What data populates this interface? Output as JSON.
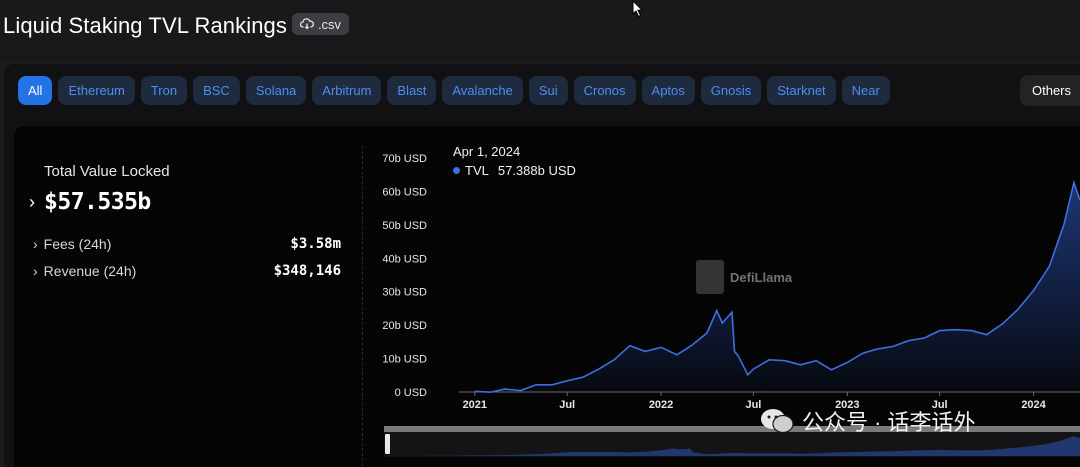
{
  "header": {
    "title": "Liquid Staking TVL Rankings",
    "csv_label": ".csv"
  },
  "tabs": [
    {
      "label": "All",
      "active": true
    },
    {
      "label": "Ethereum"
    },
    {
      "label": "Tron"
    },
    {
      "label": "BSC"
    },
    {
      "label": "Solana"
    },
    {
      "label": "Arbitrum"
    },
    {
      "label": "Blast"
    },
    {
      "label": "Avalanche"
    },
    {
      "label": "Sui"
    },
    {
      "label": "Cronos"
    },
    {
      "label": "Aptos"
    },
    {
      "label": "Gnosis"
    },
    {
      "label": "Starknet"
    },
    {
      "label": "Near"
    }
  ],
  "others_label": "Others",
  "stats": {
    "tvl_label": "Total Value Locked",
    "tvl_value": "$57.535b",
    "fees_label": "Fees (24h)",
    "fees_value": "$3.58m",
    "revenue_label": "Revenue (24h)",
    "revenue_value": "$348,146"
  },
  "tooltip": {
    "date": "Apr 1, 2024",
    "series": "TVL",
    "value": "57.388b USD"
  },
  "watermark": "DefiLlama",
  "footer_watermark": "公众号 · 话李话外",
  "colors": {
    "accent": "#2373e6",
    "line": "#3d6fe0",
    "tab_text": "#4c8ef0"
  },
  "chart_data": {
    "type": "area",
    "series": [
      {
        "name": "TVL"
      }
    ],
    "y_ticks": [
      "0 USD",
      "10b USD",
      "20b USD",
      "30b USD",
      "40b USD",
      "50b USD",
      "60b USD",
      "70b USD"
    ],
    "x_ticks": [
      "2021",
      "Jul",
      "2022",
      "Jul",
      "2023",
      "Jul",
      "2024"
    ],
    "ylim": [
      0,
      70
    ],
    "y_unit": "b USD",
    "points": [
      [
        "2021-01-01",
        0.2
      ],
      [
        "2021-02-01",
        0.3
      ],
      [
        "2021-03-01",
        0.5
      ],
      [
        "2021-04-01",
        0.8
      ],
      [
        "2021-05-01",
        1.8
      ],
      [
        "2021-06-01",
        2.5
      ],
      [
        "2021-07-01",
        3.0
      ],
      [
        "2021-08-01",
        4.8
      ],
      [
        "2021-09-01",
        6.5
      ],
      [
        "2021-10-01",
        10.0
      ],
      [
        "2021-11-01",
        13.5
      ],
      [
        "2021-12-01",
        12.5
      ],
      [
        "2022-01-01",
        13.0
      ],
      [
        "2022-02-01",
        11.5
      ],
      [
        "2022-03-01",
        13.5
      ],
      [
        "2022-04-01",
        18.0
      ],
      [
        "2022-04-20",
        24.0
      ],
      [
        "2022-05-01",
        21.0
      ],
      [
        "2022-05-20",
        23.5
      ],
      [
        "2022-05-25",
        12.5
      ],
      [
        "2022-06-01",
        10.5
      ],
      [
        "2022-06-20",
        5.5
      ],
      [
        "2022-07-01",
        6.5
      ],
      [
        "2022-08-01",
        10.0
      ],
      [
        "2022-09-01",
        9.0
      ],
      [
        "2022-10-01",
        8.5
      ],
      [
        "2022-11-01",
        9.0
      ],
      [
        "2022-12-01",
        7.0
      ],
      [
        "2023-01-01",
        8.5
      ],
      [
        "2023-02-01",
        12.0
      ],
      [
        "2023-03-01",
        12.5
      ],
      [
        "2023-04-01",
        14.0
      ],
      [
        "2023-05-01",
        15.0
      ],
      [
        "2023-06-01",
        16.5
      ],
      [
        "2023-07-01",
        18.0
      ],
      [
        "2023-08-01",
        19.0
      ],
      [
        "2023-09-01",
        18.0
      ],
      [
        "2023-10-01",
        17.5
      ],
      [
        "2023-11-01",
        20.0
      ],
      [
        "2023-12-01",
        25.0
      ],
      [
        "2024-01-01",
        30.0
      ],
      [
        "2024-02-01",
        38.0
      ],
      [
        "2024-03-01",
        50.0
      ],
      [
        "2024-03-20",
        63.0
      ],
      [
        "2024-04-01",
        57.388
      ]
    ]
  }
}
